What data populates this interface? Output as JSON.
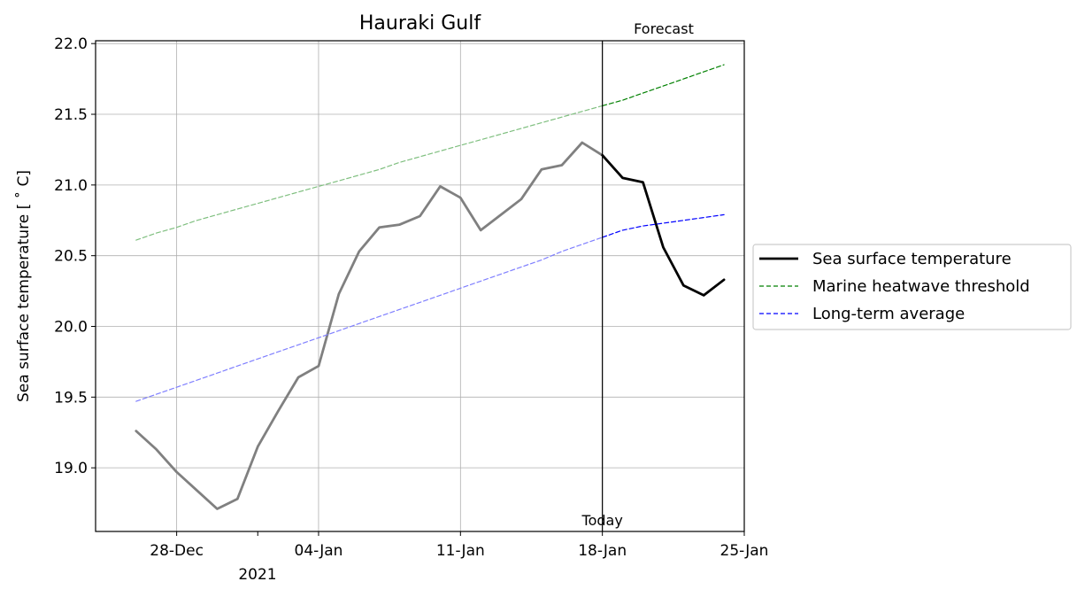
{
  "chart_data": {
    "type": "line",
    "title": "Hauraki Gulf",
    "ylabel": "Sea surface temperature [$^\\circ$C]",
    "ylabel_display": "Sea surface temperature [ ˚ C]",
    "xlabel": "",
    "year_label": "2021",
    "ylim": [
      18.55,
      22.02
    ],
    "xlim": [
      "2020-12-24",
      "2021-01-25"
    ],
    "y_ticks": [
      "19.0",
      "19.5",
      "20.0",
      "20.5",
      "21.0",
      "21.5",
      "22.0"
    ],
    "y_tick_values": [
      19.0,
      19.5,
      20.0,
      20.5,
      21.0,
      21.5,
      22.0
    ],
    "x_ticks": [
      "28-Dec",
      "04-Jan",
      "11-Jan",
      "18-Jan",
      "25-Jan"
    ],
    "x_tick_dates": [
      "2020-12-28",
      "2021-01-04",
      "2021-01-11",
      "2021-01-18",
      "2021-01-25"
    ],
    "minor_tick_date": "2021-01-01",
    "grid": true,
    "legend_position": "outside-right",
    "today_date": "2021-01-18",
    "today_label": "Today",
    "forecast_label": "Forecast",
    "x": [
      "2020-12-26",
      "2020-12-27",
      "2020-12-28",
      "2020-12-29",
      "2020-12-30",
      "2020-12-31",
      "2021-01-01",
      "2021-01-02",
      "2021-01-03",
      "2021-01-04",
      "2021-01-05",
      "2021-01-06",
      "2021-01-07",
      "2021-01-08",
      "2021-01-09",
      "2021-01-10",
      "2021-01-11",
      "2021-01-12",
      "2021-01-13",
      "2021-01-14",
      "2021-01-15",
      "2021-01-16",
      "2021-01-17",
      "2021-01-18",
      "2021-01-19",
      "2021-01-20",
      "2021-01-21",
      "2021-01-22",
      "2021-01-23",
      "2021-01-24"
    ],
    "series": [
      {
        "name": "Sea surface temperature",
        "color": "#000000",
        "past_color": "#808080",
        "style": "solid",
        "values": [
          19.26,
          19.13,
          18.97,
          18.84,
          18.71,
          18.78,
          19.15,
          19.4,
          19.64,
          19.72,
          20.23,
          20.53,
          20.7,
          20.72,
          20.78,
          20.99,
          20.91,
          20.68,
          20.79,
          20.9,
          21.11,
          21.14,
          21.3,
          21.21,
          21.05,
          21.02,
          20.56,
          20.29,
          20.22,
          20.33
        ]
      },
      {
        "name": "Marine heatwave threshold",
        "color": "#008000",
        "past_color": "#7fbf7f",
        "style": "dashed",
        "values": [
          20.61,
          20.66,
          20.7,
          20.75,
          20.79,
          20.83,
          20.87,
          20.91,
          20.95,
          20.99,
          21.03,
          21.07,
          21.11,
          21.16,
          21.2,
          21.24,
          21.28,
          21.32,
          21.36,
          21.4,
          21.44,
          21.48,
          21.52,
          21.56,
          21.6,
          21.65,
          21.7,
          21.75,
          21.8,
          21.85
        ]
      },
      {
        "name": "Long-term average",
        "color": "#0000ff",
        "past_color": "#7f7fff",
        "style": "dashed",
        "values": [
          19.47,
          19.52,
          19.57,
          19.62,
          19.67,
          19.72,
          19.77,
          19.82,
          19.87,
          19.92,
          19.97,
          20.02,
          20.07,
          20.12,
          20.17,
          20.22,
          20.27,
          20.32,
          20.37,
          20.42,
          20.47,
          20.53,
          20.58,
          20.63,
          20.68,
          20.71,
          20.73,
          20.75,
          20.77,
          20.79
        ]
      }
    ]
  }
}
